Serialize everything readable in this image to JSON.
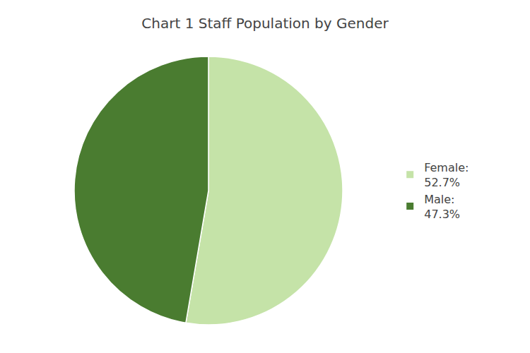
{
  "chart_data": {
    "type": "pie",
    "title": "Chart 1 Staff Population by Gender",
    "categories": [
      "Female:",
      "Male:"
    ],
    "values": [
      52.7,
      47.3
    ],
    "value_labels": [
      "52.7%",
      "47.3%"
    ],
    "colors": [
      "#c5e3a8",
      "#4a7c30"
    ],
    "legend": "right"
  }
}
